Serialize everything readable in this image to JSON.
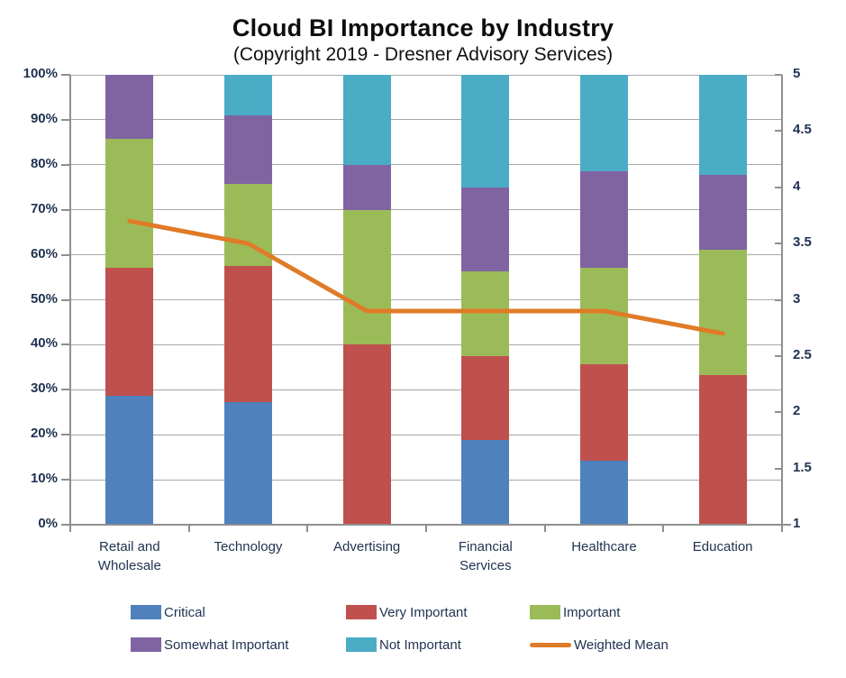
{
  "title": "Cloud BI Importance by Industry",
  "subtitle": "(Copyright 2019 - Dresner Advisory Services)",
  "colors": {
    "critical": "#4F81BD",
    "very_important": "#C0504D",
    "important": "#9BBB59",
    "somewhat_important": "#8064A2",
    "not_important": "#4BACC6",
    "weighted_mean": "#E07B27",
    "axis_text": "#1F3250",
    "title_text": "#0d0d0d",
    "gridline": "#a8a8a8",
    "axis_line": "#8f8f8f"
  },
  "chart_data": {
    "type": "bar",
    "subtype": "stacked-percent-with-line",
    "title": "Cloud BI Importance by Industry",
    "subtitle": "(Copyright 2019 - Dresner Advisory Services)",
    "categories": [
      "Retail and Wholesale",
      "Technology",
      "Advertising",
      "Financial Services",
      "Healthcare",
      "Education"
    ],
    "series": [
      {
        "name": "Critical",
        "color": "#4F81BD",
        "values": [
          28.6,
          27.3,
          0.0,
          18.8,
          14.3,
          0.0
        ]
      },
      {
        "name": "Very Important",
        "color": "#C0504D",
        "values": [
          28.6,
          30.3,
          40.0,
          18.8,
          21.4,
          33.3
        ]
      },
      {
        "name": "Important",
        "color": "#9BBB59",
        "values": [
          28.6,
          18.2,
          30.0,
          18.8,
          21.4,
          27.8
        ]
      },
      {
        "name": "Somewhat Important",
        "color": "#8064A2",
        "values": [
          14.3,
          15.2,
          10.0,
          18.8,
          21.4,
          16.7
        ]
      },
      {
        "name": "Not Important",
        "color": "#4BACC6",
        "values": [
          0.0,
          9.1,
          20.0,
          25.0,
          21.4,
          22.2
        ]
      }
    ],
    "line_series": {
      "name": "Weighted Mean",
      "color": "#E07B27",
      "axis": "right",
      "values": [
        3.7,
        3.5,
        2.9,
        2.9,
        2.9,
        2.7
      ]
    },
    "left_axis": {
      "min": 0,
      "max": 100,
      "step": 10,
      "ticks": [
        "100%",
        "90%",
        "80%",
        "70%",
        "60%",
        "50%",
        "40%",
        "30%",
        "20%",
        "10%",
        "0%"
      ]
    },
    "right_axis": {
      "min": 1,
      "max": 5,
      "step": 0.5,
      "ticks": [
        "5",
        "4.5",
        "4",
        "3.5",
        "3",
        "2.5",
        "2",
        "1.5",
        "1"
      ]
    },
    "grid": true,
    "legend_position": "bottom",
    "legend_order": [
      "Critical",
      "Very Important",
      "Important",
      "Somewhat Important",
      "Not Important",
      "Weighted Mean"
    ]
  }
}
